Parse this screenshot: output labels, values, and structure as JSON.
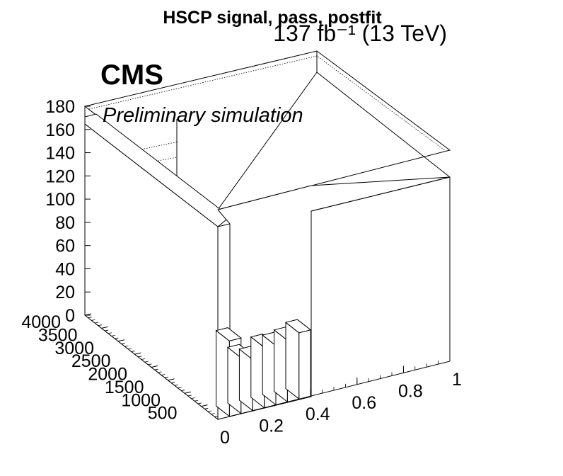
{
  "header": {
    "title": "HSCP signal, pass, postfit",
    "lumi": "137 fb⁻¹ (13 TeV)"
  },
  "labels": {
    "experiment": "CMS",
    "status": "Preliminary simulation"
  },
  "chart_data": {
    "type": "lego",
    "title": "HSCP signal, pass, postfit",
    "z_axis": {
      "ticks": [
        "0",
        "20",
        "40",
        "60",
        "80",
        "100",
        "120",
        "140",
        "160",
        "180"
      ],
      "range": [
        0,
        180
      ]
    },
    "y_axis": {
      "ticks": [
        "500",
        "1000",
        "1500",
        "2000",
        "2500",
        "3000",
        "3500",
        "4000"
      ],
      "range": [
        0,
        4000
      ]
    },
    "x_axis": {
      "ticks": [
        "0",
        "0.2",
        "0.4",
        "0.6",
        "0.8",
        "1"
      ],
      "range": [
        0,
        1
      ]
    },
    "bins": [
      {
        "x_low": 0.0,
        "x_high": 0.05,
        "y_low": 0,
        "y_high": 4000,
        "value": 168
      },
      {
        "x_low": 0.05,
        "x_high": 0.1,
        "y_low": 0,
        "y_high": 400,
        "value": 65
      },
      {
        "x_low": 0.1,
        "x_high": 0.15,
        "y_low": 0,
        "y_high": 400,
        "value": 48
      },
      {
        "x_low": 0.15,
        "x_high": 0.2,
        "y_low": 0,
        "y_high": 400,
        "value": 44
      },
      {
        "x_low": 0.2,
        "x_high": 0.25,
        "y_low": 0,
        "y_high": 400,
        "value": 52
      },
      {
        "x_low": 0.25,
        "x_high": 0.3,
        "y_low": 0,
        "y_high": 400,
        "value": 51
      },
      {
        "x_low": 0.3,
        "x_high": 0.35,
        "y_low": 0,
        "y_high": 400,
        "value": 53
      },
      {
        "x_low": 0.35,
        "x_high": 0.4,
        "y_low": 0,
        "y_high": 400,
        "value": 57
      }
    ]
  }
}
